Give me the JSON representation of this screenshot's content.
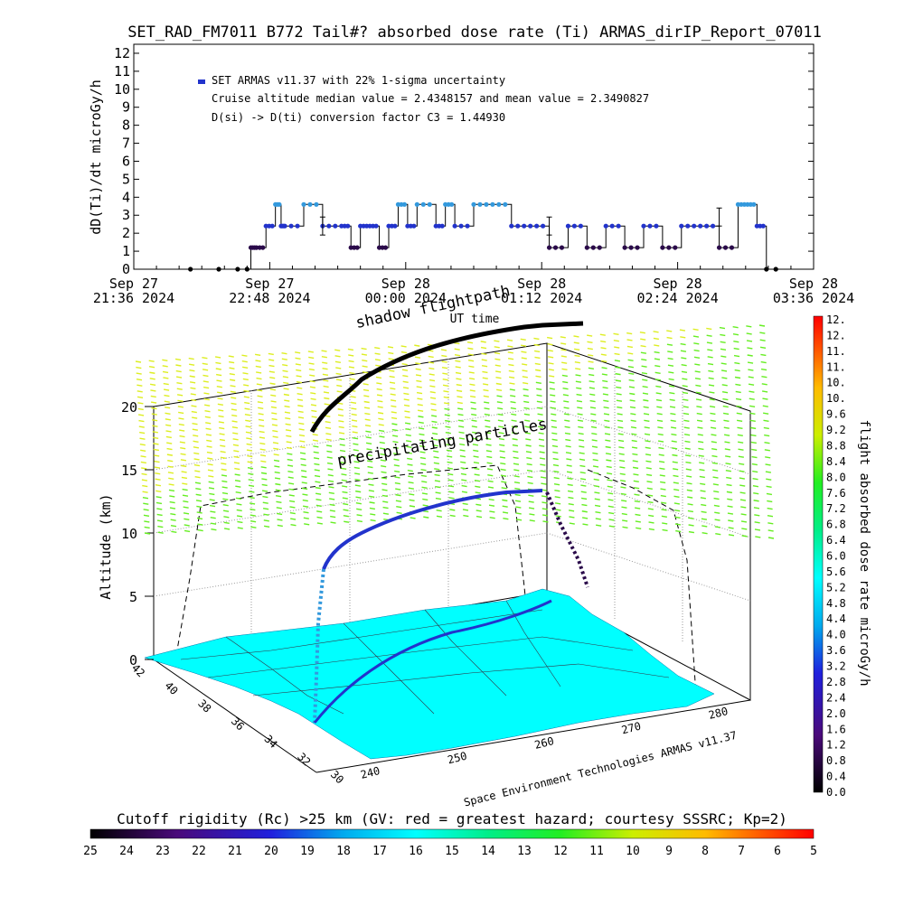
{
  "title": "SET_RAD_FM7011  B772 Tail#? absorbed dose rate (Ti) ARMAS_dirIP_Report_07011",
  "colors": {
    "dose_dark": "#2a0a4a",
    "dose_blue": "#2233cc",
    "dose_cyan": "#3399dd",
    "map_fill": "#00ffff",
    "precip_green": "#66ee22",
    "precip_yellow": "#ddee22"
  },
  "top_chart": {
    "ylabel": "dD(Ti)/dt microGy/h",
    "yticks": [
      "0",
      "1",
      "2",
      "3",
      "4",
      "5",
      "6",
      "7",
      "8",
      "9",
      "10",
      "11",
      "12"
    ],
    "xticks": [
      {
        "day": "Sep 27",
        "time": "21:36 2024"
      },
      {
        "day": "Sep 27",
        "time": "22:48 2024"
      },
      {
        "day": "Sep 28",
        "time": "00:00 2024"
      },
      {
        "day": "Sep 28",
        "time": "01:12 2024"
      },
      {
        "day": "Sep 28",
        "time": "02:24 2024"
      },
      {
        "day": "Sep 28",
        "time": "03:36 2024"
      }
    ],
    "legend_series": "SET ARMAS v11.37 with 22% 1-sigma uncertainty",
    "note1": "Cruise altitude median value = 2.4348157 and mean value = 2.3490827",
    "note2": "D(si) -> D(ti) conversion factor C3 = 1.44930"
  },
  "chart_data": [
    {
      "type": "line",
      "title": "SET_RAD_FM7011  B772 Tail#? absorbed dose rate (Ti) ARMAS_dirIP_Report_07011",
      "xlabel": "",
      "ylabel": "dD(Ti)/dt microGy/h",
      "xlim": [
        "Sep 27 21:36 2024",
        "Sep 28 03:36 2024"
      ],
      "ylim": [
        0,
        12
      ],
      "x_minutes_since_first_tick": [
        30,
        45,
        55,
        60,
        62,
        65,
        70,
        75,
        78,
        80,
        90,
        100,
        110,
        115,
        120,
        125,
        130,
        135,
        140,
        145,
        150,
        160,
        165,
        170,
        180,
        190,
        200,
        210,
        220,
        230,
        240,
        250,
        260,
        270,
        280,
        290,
        300,
        310,
        320,
        325,
        330,
        335,
        340
      ],
      "values": [
        0,
        0,
        0,
        0,
        1.2,
        1.2,
        2.4,
        3.6,
        2.4,
        2.4,
        3.6,
        2.4,
        2.4,
        1.2,
        2.4,
        2.4,
        1.2,
        2.4,
        3.6,
        2.4,
        3.6,
        2.4,
        3.6,
        2.4,
        3.6,
        3.6,
        2.4,
        2.4,
        1.2,
        2.4,
        1.2,
        2.4,
        1.2,
        2.4,
        1.2,
        2.4,
        2.4,
        1.2,
        3.6,
        3.6,
        2.4,
        0,
        0
      ],
      "series": [
        {
          "name": "SET ARMAS v11.37 with 22% 1-sigma uncertainty"
        }
      ]
    },
    {
      "type": "scatter",
      "title": "",
      "zlabel": "Altitude (km)",
      "zticks": [
        "0",
        "5",
        "10",
        "15",
        "20"
      ],
      "lat_ticks": [
        "42",
        "40",
        "38",
        "36",
        "34",
        "32",
        "30"
      ],
      "lon_ticks": [
        "240",
        "250",
        "260",
        "270",
        "280"
      ],
      "labels": {
        "shadow": "shadow flightpath",
        "ut_time": "UT time",
        "precip": "precipitating particles",
        "credit": "Space Environment Technologies ARMAS v11.37"
      },
      "cruise_altitude_km": 12.5
    }
  ],
  "colorbar_right": {
    "label": "flight absorbed dose rate microGy/h",
    "ticks": [
      "12.",
      "12.",
      "11.",
      "11.",
      "10.",
      "10.",
      "9.6",
      "9.2",
      "8.8",
      "8.4",
      "8.0",
      "7.6",
      "7.2",
      "6.8",
      "6.4",
      "6.0",
      "5.6",
      "5.2",
      "4.8",
      "4.4",
      "4.0",
      "3.6",
      "3.2",
      "2.8",
      "2.4",
      "2.0",
      "1.6",
      "1.2",
      "0.8",
      "0.4",
      "0.0"
    ]
  },
  "colorbar_bottom": {
    "label": "Cutoff rigidity (Rc) >25 km (GV: red = greatest hazard; courtesy SSSRC; Kp=2)",
    "ticks": [
      "25",
      "24",
      "23",
      "22",
      "21",
      "20",
      "19",
      "18",
      "17",
      "16",
      "15",
      "14",
      "13",
      "12",
      "11",
      "10",
      "9",
      "8",
      "7",
      "6",
      "5"
    ]
  }
}
